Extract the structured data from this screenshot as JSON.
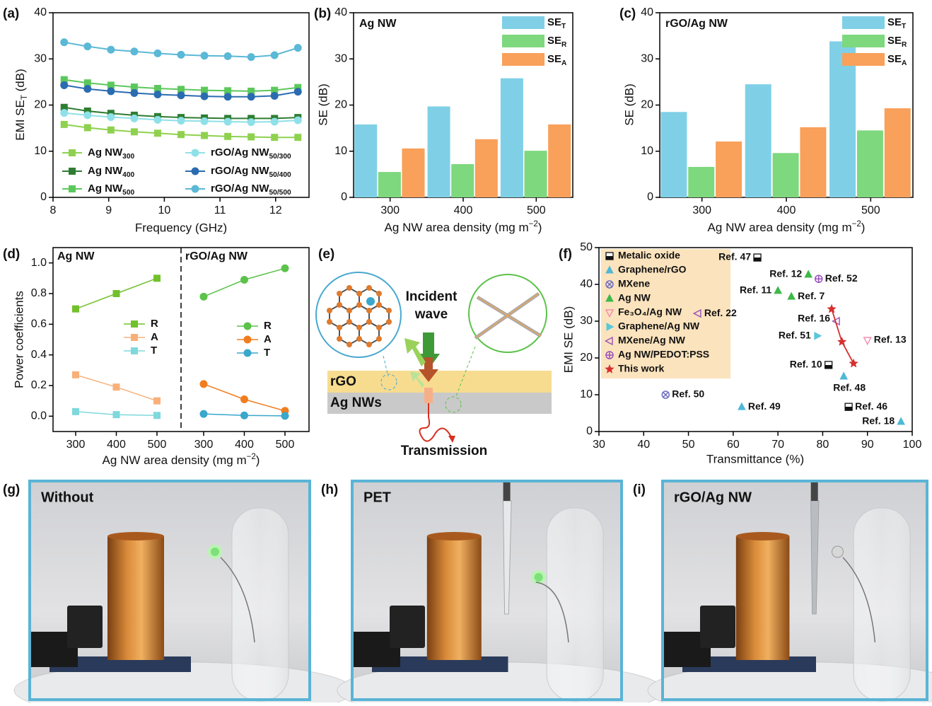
{
  "panel_labels": [
    "(a)",
    "(b)",
    "(c)",
    "(d)",
    "(e)",
    "(f)",
    "(g)",
    "(h)",
    "(i)"
  ],
  "chart_data": [
    {
      "type": "line",
      "x_label": "Frequency (GHz)",
      "y_label": [
        {
          "text": "EMI SE"
        },
        {
          "text": "T",
          "sub": true
        },
        {
          "text": " (dB)"
        }
      ],
      "xlim": [
        8,
        12.6
      ],
      "xticks": [
        8,
        9,
        10,
        11,
        12
      ],
      "ylim": [
        0,
        40
      ],
      "yticks": [
        0,
        10,
        20,
        30,
        40
      ],
      "x": [
        8.2,
        8.62,
        9.04,
        9.46,
        9.88,
        10.3,
        10.72,
        11.14,
        11.56,
        11.98,
        12.4
      ],
      "series": [
        {
          "name": [
            {
              "text": "Ag NW"
            },
            {
              "text": "300",
              "sub": true
            }
          ],
          "color": "#8fd14f",
          "marker": "square",
          "values": [
            15.8,
            15.1,
            14.6,
            14.2,
            13.9,
            13.6,
            13.4,
            13.2,
            13.1,
            13.0,
            13.0
          ]
        },
        {
          "name": [
            {
              "text": "Ag NW"
            },
            {
              "text": "400",
              "sub": true
            }
          ],
          "color": "#2e7d32",
          "marker": "square",
          "values": [
            19.5,
            18.7,
            18.2,
            17.8,
            17.5,
            17.3,
            17.2,
            17.1,
            17.1,
            17.1,
            17.3
          ]
        },
        {
          "name": [
            {
              "text": "Ag NW"
            },
            {
              "text": "500",
              "sub": true
            }
          ],
          "color": "#5cc85c",
          "marker": "square",
          "values": [
            25.5,
            24.8,
            24.3,
            23.9,
            23.6,
            23.4,
            23.2,
            23.1,
            23.0,
            23.2,
            23.8
          ]
        },
        {
          "name": [
            {
              "text": "rGO/Ag NW"
            },
            {
              "text": "50/300",
              "sub": true
            }
          ],
          "color": "#8fe0e8",
          "marker": "circle",
          "values": [
            18.3,
            17.8,
            17.4,
            17.1,
            16.8,
            16.6,
            16.5,
            16.4,
            16.3,
            16.4,
            16.7
          ]
        },
        {
          "name": [
            {
              "text": "rGO/Ag NW"
            },
            {
              "text": "50/400",
              "sub": true
            }
          ],
          "color": "#2b6cb0",
          "marker": "circle",
          "values": [
            24.3,
            23.5,
            23.0,
            22.6,
            22.3,
            22.1,
            21.9,
            21.8,
            21.8,
            22.0,
            22.9
          ]
        },
        {
          "name": [
            {
              "text": "rGO/Ag NW"
            },
            {
              "text": "50/500",
              "sub": true
            }
          ],
          "color": "#5bb8d6",
          "marker": "circle",
          "values": [
            33.6,
            32.7,
            32.0,
            31.6,
            31.2,
            30.9,
            30.7,
            30.6,
            30.4,
            30.8,
            32.4
          ]
        }
      ]
    },
    {
      "type": "bar",
      "annotation": "Ag NW",
      "x_label": [
        {
          "text": "Ag NW area density (mg m"
        },
        {
          "text": "−2",
          "sup": true
        },
        {
          "text": ")"
        }
      ],
      "y_label": "SE (dB)",
      "categories": [
        "300",
        "400",
        "500"
      ],
      "ylim": [
        0,
        40
      ],
      "yticks": [
        0,
        10,
        20,
        30,
        40
      ],
      "series": [
        {
          "name": [
            {
              "text": "SE"
            },
            {
              "text": "T",
              "sub": true
            }
          ],
          "color": "#7fd0e6",
          "values": [
            15.8,
            19.7,
            25.8
          ]
        },
        {
          "name": [
            {
              "text": "SE"
            },
            {
              "text": "R",
              "sub": true
            }
          ],
          "color": "#7ed87e",
          "values": [
            5.5,
            7.2,
            10.1
          ]
        },
        {
          "name": [
            {
              "text": "SE"
            },
            {
              "text": "A",
              "sub": true
            }
          ],
          "color": "#f9a05a",
          "values": [
            10.6,
            12.6,
            15.8
          ]
        }
      ]
    },
    {
      "type": "bar",
      "annotation": "rGO/Ag NW",
      "x_label": [
        {
          "text": "Ag NW area density (mg m"
        },
        {
          "text": "−2",
          "sup": true
        },
        {
          "text": ")"
        }
      ],
      "y_label": "SE (dB)",
      "categories": [
        "300",
        "400",
        "500"
      ],
      "ylim": [
        0,
        40
      ],
      "yticks": [
        0,
        10,
        20,
        30,
        40
      ],
      "series": [
        {
          "name": [
            {
              "text": "SE"
            },
            {
              "text": "T",
              "sub": true
            }
          ],
          "color": "#7fd0e6",
          "values": [
            18.5,
            24.5,
            33.8
          ]
        },
        {
          "name": [
            {
              "text": "SE"
            },
            {
              "text": "R",
              "sub": true
            }
          ],
          "color": "#7ed87e",
          "values": [
            6.6,
            9.6,
            14.5
          ]
        },
        {
          "name": [
            {
              "text": "SE"
            },
            {
              "text": "A",
              "sub": true
            }
          ],
          "color": "#f9a05a",
          "values": [
            12.1,
            15.2,
            19.3
          ]
        }
      ]
    },
    {
      "type": "panels",
      "x_label": [
        {
          "text": "Ag NW area density (mg m"
        },
        {
          "text": "−2",
          "sup": true
        },
        {
          "text": ")"
        }
      ],
      "y_label": "Power coefficients",
      "ylim": [
        -0.1,
        1.1
      ],
      "yticks": [
        {
          "value": 0,
          "label": "0.0"
        },
        0.2,
        0.4,
        0.6,
        0.8,
        {
          "value": 1,
          "label": "1.0"
        }
      ],
      "panels": [
        {
          "title": "Ag NW",
          "categories": [
            "300",
            "400",
            "500"
          ],
          "series": [
            {
              "name": "R",
              "color": "#72c02c",
              "marker": "square",
              "values": [
                0.7,
                0.8,
                0.9
              ]
            },
            {
              "name": "A",
              "color": "#f8b07a",
              "marker": "square",
              "values": [
                0.27,
                0.19,
                0.1
              ]
            },
            {
              "name": "T",
              "color": "#7fd8dc",
              "marker": "square",
              "values": [
                0.03,
                0.01,
                0.005
              ]
            }
          ]
        },
        {
          "title": "rGO/Ag NW",
          "categories": [
            "300",
            "400",
            "500"
          ],
          "series": [
            {
              "name": "R",
              "color": "#5cc24a",
              "marker": "circle",
              "values": [
                0.78,
                0.89,
                0.965
              ]
            },
            {
              "name": "A",
              "color": "#f07d1f",
              "marker": "circle",
              "values": [
                0.21,
                0.11,
                0.035
              ]
            },
            {
              "name": "T",
              "color": "#3aa7cc",
              "marker": "circle",
              "values": [
                0.015,
                0.005,
                0.002
              ]
            }
          ]
        }
      ]
    },
    {
      "type": "scatter",
      "x_label": "Transmittance (%)",
      "y_label": "EMI SE (dB)",
      "xlim": [
        30,
        100
      ],
      "xticks": [
        30,
        40,
        50,
        60,
        70,
        80,
        90,
        100
      ],
      "ylim": [
        0,
        50
      ],
      "yticks": [
        0,
        10,
        20,
        30,
        40,
        50
      ],
      "series": [
        {
          "name": "Metalic oxide",
          "color": "#111111",
          "marker": "half-square",
          "x": [
            65.4,
            81.3,
            85.8
          ],
          "values": [
            47.3,
            18.1,
            6.7
          ],
          "point_labels": [
            "Ref. 47",
            "Ref. 10",
            "Ref. 46"
          ]
        },
        {
          "name": "Graphene/rGO",
          "color": "#4fb8d8",
          "marker": "triangle",
          "x": [
            84.7,
            61.9,
            97.5
          ],
          "values": [
            15.0,
            6.7,
            2.7
          ],
          "point_labels": [
            "Ref. 48",
            "Ref. 49",
            "Ref. 18"
          ]
        },
        {
          "name": "MXene",
          "color": "#6b6bbf",
          "marker": "crossed-circle",
          "x": [
            44.9
          ],
          "values": [
            10.0
          ],
          "point_labels": [
            "Ref. 50"
          ]
        },
        {
          "name": "Ag NW",
          "color": "#3fb84a",
          "marker": "triangle",
          "x": [
            76.8,
            70.0,
            73.0
          ],
          "values": [
            42.7,
            38.3,
            36.7
          ],
          "point_labels": [
            "Ref. 12",
            "Ref. 11",
            "Ref. 7"
          ]
        },
        {
          "name": "Fe₃O₄/Ag NW",
          "color": "#f28fb0",
          "marker": "triangle-down",
          "x": [
            90.0
          ],
          "values": [
            24.8
          ],
          "point_labels": [
            "Ref. 13"
          ]
        },
        {
          "name": "Graphene/Ag NW",
          "color": "#5ac8d8",
          "marker": "triangle-right",
          "x": [
            78.8
          ],
          "values": [
            26.0
          ],
          "point_labels": [
            "Ref. 51"
          ]
        },
        {
          "name": "MXene/Ag NW",
          "color": "#9b59b6",
          "marker": "triangle-left",
          "x": [
            52.1,
            83.1
          ],
          "values": [
            32.1,
            30.0
          ],
          "point_labels": [
            "Ref. 22",
            "Ref. 16"
          ]
        },
        {
          "name": "Ag NW/PEDOT:PSS",
          "color": "#9b4fc0",
          "marker": "plus-circle",
          "x": [
            79.1
          ],
          "values": [
            41.5
          ],
          "point_labels": [
            "Ref. 52"
          ]
        },
        {
          "name": "This work",
          "color": "#d62f2f",
          "marker": "star",
          "line": true,
          "x": [
            82.0,
            84.3,
            86.9
          ],
          "values": [
            33.3,
            24.4,
            18.5
          ]
        }
      ]
    }
  ],
  "diagram": {
    "incident_label": [
      "Incident",
      "wave"
    ],
    "layer_top": "rGO",
    "layer_bottom": "Ag NWs",
    "transmission_label": "Transmission"
  },
  "photos": [
    {
      "label": "Without"
    },
    {
      "label": "PET"
    },
    {
      "label": "rGO/Ag NW"
    }
  ]
}
